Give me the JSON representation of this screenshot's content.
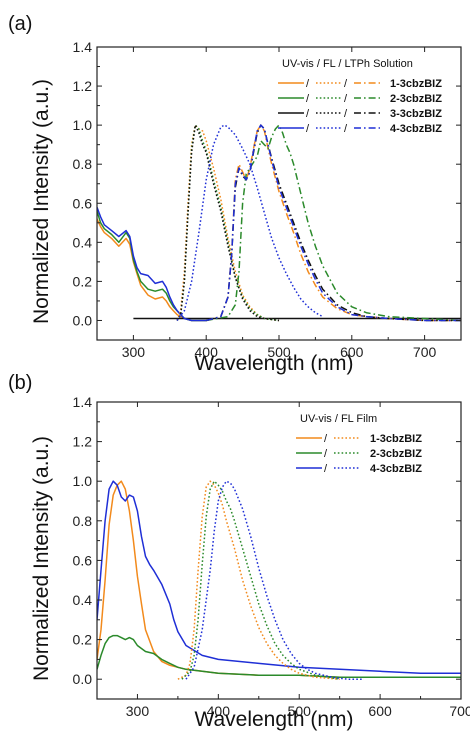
{
  "chart_data": [
    {
      "panel_label": "(a)",
      "type": "line",
      "xlabel": "Wavelength (nm)",
      "ylabel": "Normalized Intensity (a.u.)",
      "xlim": [
        250,
        750
      ],
      "ylim": [
        -0.1,
        1.4
      ],
      "xticks": [
        300,
        400,
        500,
        600,
        700
      ],
      "yticks": [
        0.0,
        0.2,
        0.4,
        0.6,
        0.8,
        1.0,
        1.2,
        1.4
      ],
      "xtick_labels": [
        "300",
        "400",
        "500",
        "600",
        "700"
      ],
      "ytick_labels": [
        "0.0",
        "0.2",
        "0.4",
        "0.6",
        "0.8",
        "1.0",
        "1.2",
        "1.4"
      ],
      "legend": {
        "header": "UV-vis / FL / LTPh   Solution",
        "placement": "top-right",
        "separator": "/",
        "styles": [
          "solid",
          "dotted",
          "dashdot"
        ],
        "entries": [
          {
            "name": "1-3cbzBIZ",
            "color": "#f28a1c"
          },
          {
            "name": "2-3cbzBIZ",
            "color": "#2b8a2b"
          },
          {
            "name": "3-3cbzBIZ",
            "color": "#111111"
          },
          {
            "name": "4-3cbzBIZ",
            "color": "#1f2fd6"
          }
        ]
      },
      "series": [
        {
          "name": "1-3cbzBIZ",
          "style": "solid",
          "color": "#f28a1c",
          "x": [
            250,
            255,
            260,
            270,
            280,
            290,
            295,
            300,
            305,
            310,
            320,
            330,
            340,
            345,
            350,
            355,
            360,
            365,
            370,
            380,
            400
          ],
          "y": [
            0.52,
            0.48,
            0.45,
            0.42,
            0.38,
            0.42,
            0.39,
            0.3,
            0.24,
            0.18,
            0.13,
            0.11,
            0.12,
            0.1,
            0.07,
            0.05,
            0.03,
            0.02,
            0.01,
            0.0,
            0.0
          ]
        },
        {
          "name": "2-3cbzBIZ",
          "style": "solid",
          "color": "#2b8a2b",
          "x": [
            250,
            255,
            260,
            270,
            280,
            290,
            295,
            300,
            305,
            310,
            320,
            330,
            340,
            345,
            350,
            355,
            360,
            365,
            370,
            380,
            400
          ],
          "y": [
            0.56,
            0.5,
            0.47,
            0.44,
            0.4,
            0.45,
            0.42,
            0.31,
            0.25,
            0.2,
            0.16,
            0.15,
            0.16,
            0.14,
            0.1,
            0.07,
            0.05,
            0.03,
            0.01,
            0.0,
            0.0
          ]
        },
        {
          "name": "3-3cbzBIZ",
          "style": "solid",
          "color": "#111111",
          "x": [
            300,
            400,
            500,
            600,
            750
          ],
          "y": [
            0.01,
            0.01,
            0.01,
            0.01,
            0.01
          ]
        },
        {
          "name": "4-3cbzBIZ",
          "style": "solid",
          "color": "#1f2fd6",
          "x": [
            250,
            255,
            260,
            270,
            280,
            290,
            295,
            300,
            305,
            310,
            320,
            330,
            340,
            345,
            350,
            355,
            360,
            365,
            370,
            380,
            400
          ],
          "y": [
            0.58,
            0.53,
            0.49,
            0.46,
            0.43,
            0.46,
            0.43,
            0.33,
            0.27,
            0.24,
            0.23,
            0.19,
            0.2,
            0.17,
            0.12,
            0.08,
            0.05,
            0.03,
            0.01,
            0.0,
            0.0
          ]
        },
        {
          "name": "1-3cbzBIZ",
          "style": "dotted",
          "color": "#f28a1c",
          "x": [
            360,
            365,
            370,
            375,
            380,
            385,
            390,
            395,
            400,
            405,
            410,
            420,
            430,
            440,
            450,
            460,
            470,
            480,
            500
          ],
          "y": [
            0.0,
            0.05,
            0.25,
            0.6,
            0.9,
            1.0,
            0.98,
            0.97,
            0.92,
            0.85,
            0.78,
            0.62,
            0.42,
            0.25,
            0.13,
            0.07,
            0.03,
            0.01,
            0.0
          ]
        },
        {
          "name": "2-3cbzBIZ",
          "style": "dotted",
          "color": "#2b8a2b",
          "x": [
            360,
            365,
            370,
            375,
            380,
            385,
            390,
            395,
            400,
            405,
            410,
            420,
            430,
            440,
            450,
            460,
            470,
            480,
            500
          ],
          "y": [
            0.0,
            0.03,
            0.2,
            0.55,
            0.88,
            1.0,
            0.98,
            0.92,
            0.87,
            0.8,
            0.72,
            0.58,
            0.4,
            0.22,
            0.12,
            0.06,
            0.03,
            0.01,
            0.0
          ]
        },
        {
          "name": "3-3cbzBIZ",
          "style": "dotted",
          "color": "#111111",
          "x": [
            360,
            365,
            370,
            375,
            380,
            385,
            390,
            395,
            400,
            405,
            410,
            420,
            430,
            440,
            450,
            460,
            470,
            480,
            500
          ],
          "y": [
            0.0,
            0.03,
            0.2,
            0.55,
            0.86,
            1.0,
            0.96,
            0.9,
            0.86,
            0.78,
            0.7,
            0.56,
            0.38,
            0.22,
            0.11,
            0.05,
            0.02,
            0.01,
            0.0
          ]
        },
        {
          "name": "4-3cbzBIZ",
          "style": "dotted",
          "color": "#1f2fd6",
          "x": [
            360,
            370,
            380,
            390,
            400,
            410,
            420,
            425,
            430,
            440,
            450,
            460,
            470,
            480,
            490,
            500,
            510,
            520,
            530,
            540,
            550,
            560
          ],
          "y": [
            0.0,
            0.05,
            0.2,
            0.45,
            0.72,
            0.9,
            0.99,
            1.0,
            0.99,
            0.95,
            0.88,
            0.8,
            0.68,
            0.55,
            0.42,
            0.32,
            0.24,
            0.17,
            0.11,
            0.07,
            0.04,
            0.02
          ]
        },
        {
          "name": "1-3cbzBIZ",
          "style": "dashdot",
          "color": "#f28a1c",
          "x": [
            400,
            420,
            430,
            435,
            440,
            445,
            450,
            455,
            460,
            465,
            470,
            475,
            480,
            485,
            490,
            500,
            510,
            520,
            530,
            540,
            550,
            560,
            580,
            600,
            620,
            650,
            700,
            750
          ],
          "y": [
            0.0,
            0.02,
            0.12,
            0.35,
            0.72,
            0.8,
            0.76,
            0.72,
            0.78,
            0.88,
            0.97,
            1.0,
            0.97,
            0.88,
            0.8,
            0.66,
            0.55,
            0.45,
            0.34,
            0.25,
            0.18,
            0.12,
            0.06,
            0.03,
            0.02,
            0.01,
            0.0,
            0.0
          ]
        },
        {
          "name": "2-3cbzBIZ",
          "style": "dashdot",
          "color": "#2b8a2b",
          "x": [
            400,
            430,
            440,
            445,
            450,
            455,
            460,
            470,
            475,
            480,
            485,
            490,
            495,
            500,
            505,
            510,
            515,
            520,
            530,
            540,
            550,
            560,
            580,
            600,
            620,
            650,
            700,
            750
          ],
          "y": [
            0.0,
            0.02,
            0.08,
            0.25,
            0.6,
            0.75,
            0.78,
            0.84,
            0.92,
            0.9,
            0.88,
            0.94,
            0.98,
            1.0,
            0.96,
            0.9,
            0.86,
            0.8,
            0.65,
            0.5,
            0.38,
            0.28,
            0.14,
            0.07,
            0.04,
            0.02,
            0.01,
            0.0
          ]
        },
        {
          "name": "3-3cbzBIZ",
          "style": "dashdot",
          "color": "#111111",
          "x": [
            400,
            420,
            430,
            435,
            440,
            445,
            450,
            455,
            460,
            465,
            470,
            475,
            480,
            485,
            490,
            500,
            510,
            520,
            530,
            540,
            550,
            560,
            580,
            600,
            620,
            650,
            700,
            750
          ],
          "y": [
            0.0,
            0.02,
            0.12,
            0.34,
            0.68,
            0.78,
            0.74,
            0.72,
            0.76,
            0.86,
            0.96,
            1.0,
            0.98,
            0.9,
            0.83,
            0.7,
            0.6,
            0.5,
            0.4,
            0.31,
            0.23,
            0.16,
            0.08,
            0.04,
            0.02,
            0.01,
            0.0,
            0.0
          ]
        },
        {
          "name": "4-3cbzBIZ",
          "style": "dashdot",
          "color": "#1f2fd6",
          "x": [
            400,
            420,
            430,
            435,
            440,
            445,
            450,
            455,
            460,
            465,
            470,
            475,
            480,
            485,
            490,
            500,
            510,
            520,
            530,
            540,
            550,
            560,
            580,
            600,
            620,
            650,
            700,
            750
          ],
          "y": [
            0.0,
            0.02,
            0.12,
            0.34,
            0.7,
            0.78,
            0.75,
            0.72,
            0.76,
            0.87,
            0.97,
            1.0,
            0.98,
            0.9,
            0.82,
            0.68,
            0.58,
            0.48,
            0.38,
            0.29,
            0.21,
            0.14,
            0.07,
            0.03,
            0.02,
            0.01,
            0.0,
            0.0
          ]
        }
      ]
    },
    {
      "panel_label": "(b)",
      "type": "line",
      "xlabel": "Wavelength (nm)",
      "ylabel": "Normalized Intensity (a.u.)",
      "xlim": [
        250,
        700
      ],
      "ylim": [
        -0.1,
        1.4
      ],
      "xticks": [
        300,
        400,
        500,
        600,
        700
      ],
      "yticks": [
        0.0,
        0.2,
        0.4,
        0.6,
        0.8,
        1.0,
        1.2,
        1.4
      ],
      "xtick_labels": [
        "300",
        "400",
        "500",
        "600",
        "700"
      ],
      "ytick_labels": [
        "0.0",
        "0.2",
        "0.4",
        "0.6",
        "0.8",
        "1.0",
        "1.2",
        "1.4"
      ],
      "legend": {
        "header": "UV-vis / FL      Film",
        "placement": "top-right",
        "separator": "/",
        "styles": [
          "solid",
          "dotted"
        ],
        "entries": [
          {
            "name": "1-3cbzBIZ",
            "color": "#f28a1c"
          },
          {
            "name": "2-3cbzBIZ",
            "color": "#2b8a2b"
          },
          {
            "name": "4-3cbzBIZ",
            "color": "#1f2fd6"
          }
        ]
      },
      "series": [
        {
          "name": "1-3cbzBIZ",
          "style": "solid",
          "color": "#f28a1c",
          "x": [
            250,
            255,
            260,
            265,
            270,
            275,
            280,
            285,
            290,
            295,
            300,
            305,
            310,
            320,
            330,
            340,
            350,
            360,
            380,
            400,
            450,
            500,
            550,
            600,
            650,
            700
          ],
          "y": [
            0.1,
            0.25,
            0.5,
            0.78,
            0.93,
            0.98,
            1.0,
            0.96,
            0.85,
            0.7,
            0.52,
            0.38,
            0.25,
            0.14,
            0.09,
            0.07,
            0.06,
            0.05,
            0.04,
            0.03,
            0.02,
            0.02,
            0.01,
            0.01,
            0.01,
            0.01
          ]
        },
        {
          "name": "2-3cbzBIZ",
          "style": "solid",
          "color": "#2b8a2b",
          "x": [
            250,
            255,
            260,
            265,
            270,
            275,
            280,
            285,
            290,
            295,
            300,
            310,
            320,
            330,
            340,
            350,
            360,
            380,
            400,
            450,
            500,
            550,
            600,
            650,
            700
          ],
          "y": [
            0.05,
            0.12,
            0.18,
            0.21,
            0.22,
            0.22,
            0.21,
            0.2,
            0.21,
            0.2,
            0.17,
            0.14,
            0.13,
            0.1,
            0.08,
            0.06,
            0.05,
            0.04,
            0.03,
            0.02,
            0.02,
            0.01,
            0.01,
            0.01,
            0.01
          ]
        },
        {
          "name": "4-3cbzBIZ",
          "style": "solid",
          "color": "#1f2fd6",
          "x": [
            250,
            255,
            260,
            265,
            270,
            275,
            280,
            285,
            290,
            295,
            300,
            305,
            310,
            315,
            320,
            330,
            340,
            345,
            350,
            360,
            380,
            400,
            450,
            500,
            550,
            600,
            650,
            700
          ],
          "y": [
            0.3,
            0.55,
            0.8,
            0.96,
            1.0,
            0.98,
            0.92,
            0.9,
            0.93,
            0.92,
            0.85,
            0.72,
            0.62,
            0.58,
            0.55,
            0.48,
            0.38,
            0.3,
            0.24,
            0.17,
            0.12,
            0.1,
            0.08,
            0.06,
            0.05,
            0.04,
            0.03,
            0.03
          ]
        },
        {
          "name": "1-3cbzBIZ",
          "style": "dotted",
          "color": "#f28a1c",
          "x": [
            350,
            360,
            365,
            370,
            375,
            380,
            385,
            390,
            395,
            400,
            405,
            410,
            420,
            430,
            440,
            450,
            460,
            470,
            480,
            490,
            500,
            520,
            550
          ],
          "y": [
            0.0,
            0.02,
            0.08,
            0.25,
            0.55,
            0.82,
            0.97,
            1.0,
            0.98,
            0.94,
            0.88,
            0.8,
            0.66,
            0.5,
            0.37,
            0.26,
            0.18,
            0.12,
            0.08,
            0.05,
            0.03,
            0.01,
            0.0
          ]
        },
        {
          "name": "2-3cbzBIZ",
          "style": "dotted",
          "color": "#2b8a2b",
          "x": [
            355,
            365,
            370,
            375,
            380,
            385,
            390,
            395,
            400,
            405,
            410,
            415,
            420,
            430,
            440,
            450,
            460,
            470,
            480,
            490,
            500,
            520,
            550
          ],
          "y": [
            0.0,
            0.04,
            0.12,
            0.3,
            0.58,
            0.82,
            0.96,
            1.0,
            0.98,
            0.95,
            0.9,
            0.86,
            0.8,
            0.66,
            0.52,
            0.38,
            0.27,
            0.18,
            0.12,
            0.08,
            0.05,
            0.02,
            0.0
          ]
        },
        {
          "name": "4-3cbzBIZ",
          "style": "dotted",
          "color": "#1f2fd6",
          "x": [
            360,
            370,
            380,
            390,
            395,
            400,
            405,
            410,
            415,
            420,
            430,
            440,
            450,
            460,
            470,
            480,
            490,
            500,
            510,
            520,
            540,
            560,
            580
          ],
          "y": [
            0.0,
            0.06,
            0.25,
            0.55,
            0.75,
            0.9,
            0.97,
            1.0,
            0.99,
            0.96,
            0.86,
            0.72,
            0.56,
            0.42,
            0.3,
            0.2,
            0.13,
            0.08,
            0.05,
            0.03,
            0.01,
            0.0,
            0.0
          ]
        }
      ]
    }
  ]
}
